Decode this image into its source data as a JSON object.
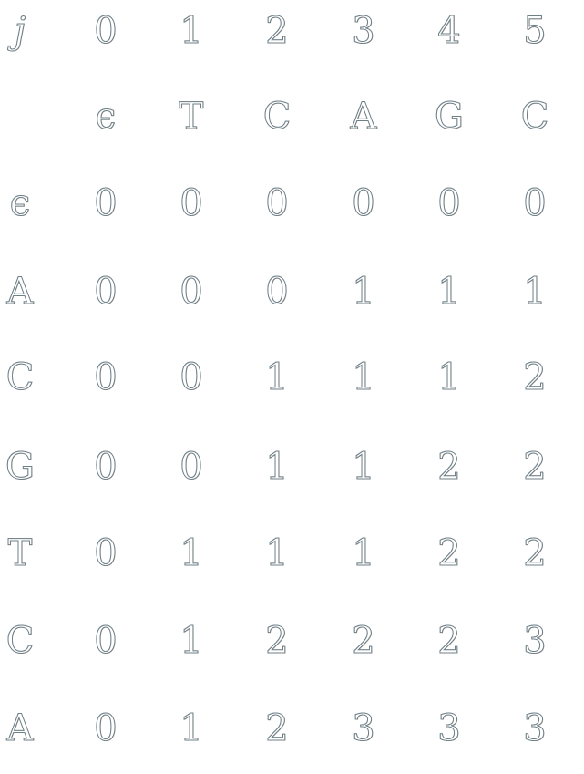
{
  "table": {
    "header_label": "j",
    "column_indices": [
      "0",
      "1",
      "2",
      "3",
      "4",
      "5"
    ],
    "column_chars": [
      "ϵ",
      "T",
      "C",
      "A",
      "G",
      "C"
    ],
    "rows": [
      {
        "label": "ϵ",
        "values": [
          "0",
          "0",
          "0",
          "0",
          "0",
          "0"
        ]
      },
      {
        "label": "A",
        "values": [
          "0",
          "0",
          "0",
          "1",
          "1",
          "1"
        ]
      },
      {
        "label": "C",
        "values": [
          "0",
          "0",
          "1",
          "1",
          "1",
          "2"
        ]
      },
      {
        "label": "G",
        "values": [
          "0",
          "0",
          "1",
          "1",
          "2",
          "2"
        ]
      },
      {
        "label": "T",
        "values": [
          "0",
          "1",
          "1",
          "1",
          "2",
          "2"
        ]
      },
      {
        "label": "C",
        "values": [
          "0",
          "1",
          "2",
          "2",
          "2",
          "3"
        ]
      },
      {
        "label": "A",
        "values": [
          "0",
          "1",
          "2",
          "3",
          "3",
          "3"
        ]
      }
    ]
  },
  "colors": {
    "glyph_outline": "#6f7f86",
    "background": "#ffffff"
  }
}
